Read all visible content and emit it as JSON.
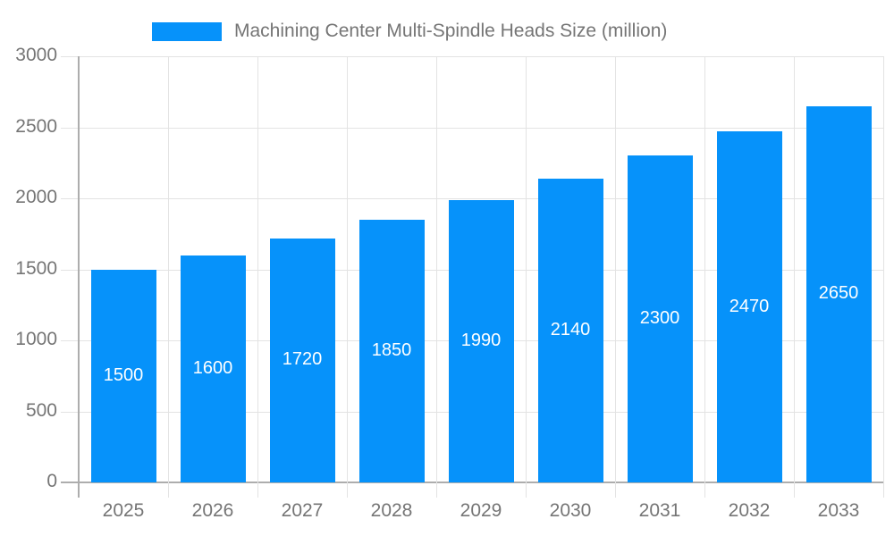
{
  "chart_data": {
    "type": "bar",
    "title": "Machining Center Multi-Spindle Heads Size (million)",
    "legend": {
      "position": "top",
      "entries": [
        "Machining Center Multi-Spindle Heads Size (million)"
      ]
    },
    "categories": [
      "2025",
      "2026",
      "2027",
      "2028",
      "2029",
      "2030",
      "2031",
      "2032",
      "2033"
    ],
    "series": [
      {
        "name": "Machining Center Multi-Spindle Heads Size (million)",
        "values": [
          1500,
          1600,
          1720,
          1850,
          1990,
          2140,
          2300,
          2470,
          2650
        ]
      }
    ],
    "bar_labels": [
      "1500",
      "1600",
      "1720",
      "1850",
      "1990",
      "2140",
      "2300",
      "2470",
      "2650"
    ],
    "xlabel": "",
    "ylabel": "",
    "ylim": [
      0,
      3000
    ],
    "yticks": [
      0,
      500,
      1000,
      1500,
      2000,
      2500,
      3000
    ],
    "grid": true,
    "colors": {
      "bar": "#0692fa",
      "bar_label_text": "#ffffff",
      "axis_text": "#757575",
      "gridline": "#e3e3e3",
      "axis_line": "#adadad",
      "background": "#ffffff"
    }
  }
}
